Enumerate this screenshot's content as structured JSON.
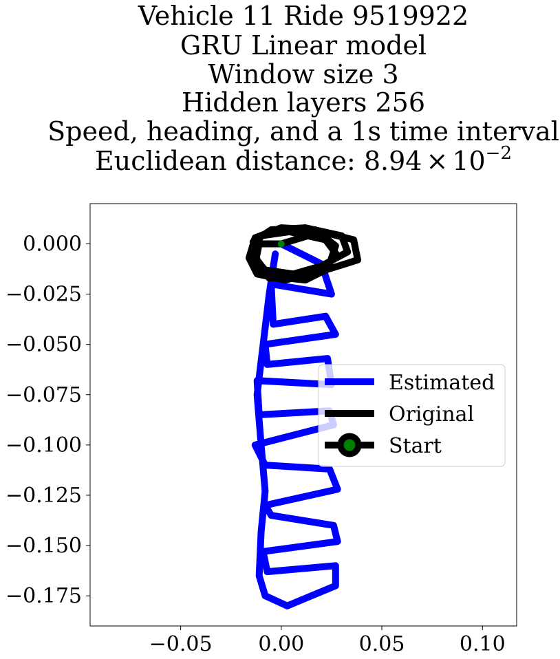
{
  "chart_data": {
    "type": "line",
    "title_lines": [
      "Vehicle 11 Ride 9519922",
      "GRU Linear model",
      "Window size 3",
      "Hidden layers 256",
      "Speed, heading, and a 1s time interval"
    ],
    "title_metric_prefix": "Euclidean distance: ",
    "title_metric_mantissa": "8.94",
    "title_metric_times": "×",
    "title_metric_base": "10",
    "title_metric_exponent": "−2",
    "xlabel": "",
    "ylabel": "",
    "xlim": [
      -0.095,
      0.117
    ],
    "ylim": [
      -0.19,
      0.02
    ],
    "xticks": [
      -0.05,
      0.0,
      0.05,
      0.1
    ],
    "xtick_labels": [
      "−0.05",
      "0.00",
      "0.05",
      "0.10"
    ],
    "yticks": [
      0.0,
      -0.025,
      -0.05,
      -0.075,
      -0.1,
      -0.125,
      -0.15,
      -0.175
    ],
    "ytick_labels": [
      "0.000",
      "−0.025",
      "−0.050",
      "−0.075",
      "−0.100",
      "−0.125",
      "−0.150",
      "−0.175"
    ],
    "grid": false,
    "legend_position": "center-right",
    "legend": [
      {
        "label": "Estimated",
        "color": "#0000ff",
        "marker": "none"
      },
      {
        "label": "Original",
        "color": "#000000",
        "marker": "none"
      },
      {
        "label": "Start",
        "color": "#000000",
        "marker": "circle",
        "marker_color": "#008000"
      }
    ],
    "series": [
      {
        "name": "Estimated",
        "color": "#0000ff",
        "points": [
          [
            0.0,
            0.0
          ],
          [
            0.02,
            -0.01
          ],
          [
            0.025,
            -0.025
          ],
          [
            -0.005,
            -0.02
          ],
          [
            -0.004,
            -0.04
          ],
          [
            0.022,
            -0.036
          ],
          [
            0.027,
            -0.045
          ],
          [
            -0.008,
            -0.05
          ],
          [
            -0.007,
            -0.06
          ],
          [
            0.023,
            -0.057
          ],
          [
            0.025,
            -0.07
          ],
          [
            -0.012,
            -0.068
          ],
          [
            -0.011,
            -0.085
          ],
          [
            0.024,
            -0.083
          ],
          [
            0.026,
            -0.09
          ],
          [
            -0.013,
            -0.1
          ],
          [
            -0.008,
            -0.11
          ],
          [
            0.024,
            -0.112
          ],
          [
            0.028,
            -0.122
          ],
          [
            -0.008,
            -0.13
          ],
          [
            -0.005,
            -0.135
          ],
          [
            0.026,
            -0.14
          ],
          [
            0.028,
            -0.148
          ],
          [
            -0.009,
            -0.153
          ],
          [
            -0.007,
            -0.163
          ],
          [
            0.027,
            -0.16
          ],
          [
            0.027,
            -0.17
          ],
          [
            0.003,
            -0.18
          ],
          [
            -0.008,
            -0.175
          ],
          [
            -0.011,
            -0.165
          ],
          [
            -0.01,
            -0.143
          ],
          [
            -0.008,
            -0.123
          ],
          [
            -0.01,
            -0.1
          ],
          [
            -0.012,
            -0.075
          ],
          [
            -0.009,
            -0.05
          ],
          [
            -0.006,
            -0.025
          ],
          [
            -0.003,
            -0.005
          ]
        ]
      },
      {
        "name": "Original",
        "color": "#000000",
        "points": [
          [
            0.0,
            0.0
          ],
          [
            0.02,
            0.006
          ],
          [
            0.036,
            0.002
          ],
          [
            0.038,
            -0.008
          ],
          [
            0.022,
            -0.013
          ],
          [
            0.012,
            -0.018
          ],
          [
            -0.006,
            -0.016
          ],
          [
            -0.012,
            -0.008
          ],
          [
            -0.014,
            0.001
          ],
          [
            -0.005,
            0.007
          ],
          [
            0.012,
            0.008
          ],
          [
            0.03,
            0.004
          ],
          [
            0.033,
            -0.004
          ],
          [
            0.02,
            -0.011
          ],
          [
            0.006,
            -0.015
          ],
          [
            -0.008,
            -0.013
          ],
          [
            -0.015,
            -0.005
          ],
          [
            -0.01,
            0.004
          ],
          [
            0.004,
            0.006
          ],
          [
            0.022,
            0.002
          ],
          [
            0.028,
            -0.006
          ],
          [
            0.017,
            -0.014
          ],
          [
            0.002,
            -0.018
          ],
          [
            -0.012,
            -0.015
          ],
          [
            -0.016,
            -0.007
          ],
          [
            -0.013,
            0.003
          ],
          [
            0.0,
            0.008
          ],
          [
            0.017,
            0.007
          ],
          [
            0.027,
            -0.001
          ],
          [
            0.024,
            -0.01
          ],
          [
            0.008,
            -0.016
          ],
          [
            -0.006,
            -0.017
          ],
          [
            -0.013,
            -0.01
          ],
          [
            -0.011,
            0.0
          ],
          [
            0.0,
            0.0
          ]
        ]
      }
    ],
    "start_point": {
      "name": "Start",
      "x": 0.0,
      "y": 0.0,
      "color": "#008000"
    }
  }
}
